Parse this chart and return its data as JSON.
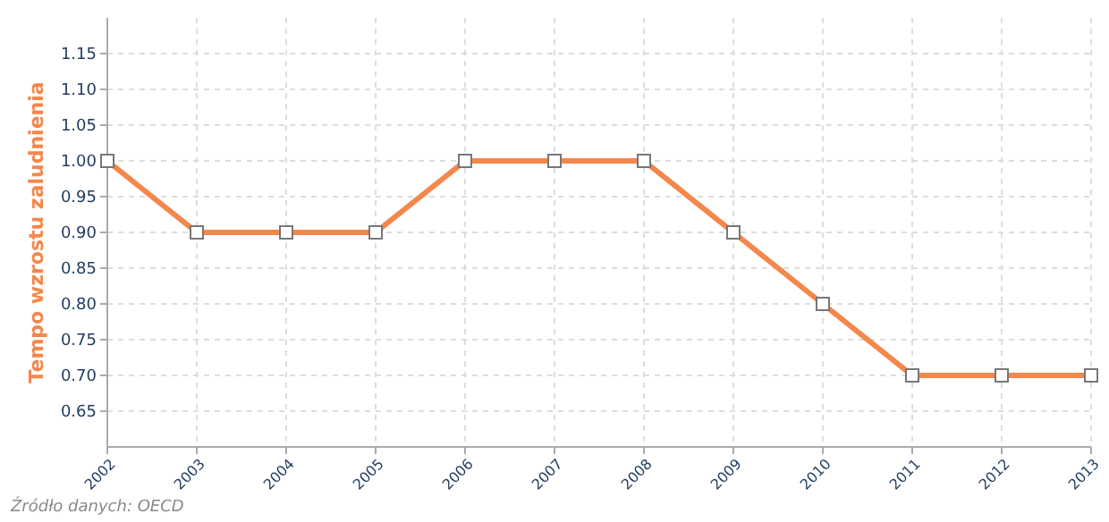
{
  "chart_data": {
    "type": "line",
    "ylabel": "Tempo wzrostu zaludnienia",
    "x": [
      2002,
      2003,
      2004,
      2005,
      2006,
      2007,
      2008,
      2009,
      2010,
      2011,
      2012,
      2013
    ],
    "series": [
      {
        "color": "#f4874b",
        "values": [
          1.0,
          0.9,
          0.9,
          0.9,
          1.0,
          1.0,
          1.0,
          0.9,
          0.8,
          0.7,
          0.7,
          0.7
        ]
      }
    ],
    "xlim": [
      2002,
      2013
    ],
    "xticks": [
      2002,
      2003,
      2004,
      2005,
      2006,
      2007,
      2008,
      2009,
      2010,
      2011,
      2012,
      2013
    ],
    "ylim": [
      0.6,
      1.2
    ],
    "yticks": [
      {
        "value": 0.65,
        "label": "0.65"
      },
      {
        "value": 0.7,
        "label": "0.70"
      },
      {
        "value": 0.75,
        "label": "0.75"
      },
      {
        "value": 0.8,
        "label": "0.80"
      },
      {
        "value": 0.85,
        "label": "0.85"
      },
      {
        "value": 0.9,
        "label": "0.90"
      },
      {
        "value": 0.95,
        "label": "0.95"
      },
      {
        "value": 1.0,
        "label": "1.00"
      },
      {
        "value": 1.05,
        "label": "1.05"
      },
      {
        "value": 1.1,
        "label": "1.10"
      },
      {
        "value": 1.15,
        "label": "1.15"
      }
    ],
    "grid": true,
    "marker": "square",
    "line_style": "solid",
    "annotations": [
      "Źródło danych: OECD"
    ]
  }
}
